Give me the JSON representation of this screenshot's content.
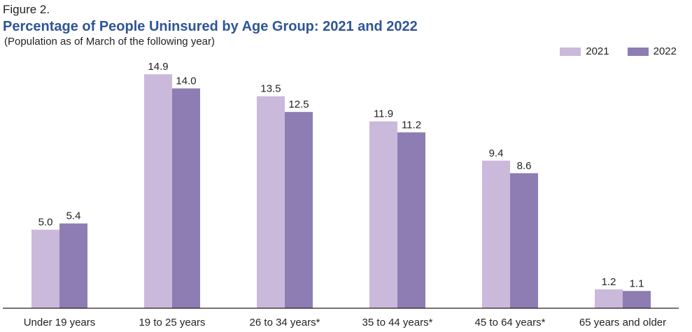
{
  "figure_label": "Figure 2.",
  "title": "Percentage of People Uninsured by Age Group: 2021 and 2022",
  "subtitle": "(Population as of March of the following year)",
  "colors": {
    "series_2021": "#cbb9dc",
    "series_2022": "#8e7db3",
    "title": "#2f5597",
    "axis": "#231f20"
  },
  "legend": [
    {
      "label": "2021",
      "color": "#cbb9dc"
    },
    {
      "label": "2022",
      "color": "#8e7db3"
    }
  ],
  "chart_data": {
    "type": "bar",
    "categories": [
      "Under 19 years",
      "19 to 25 years",
      "26 to 34 years*",
      "35 to 44 years*",
      "45 to 64 years*",
      "65 years and older"
    ],
    "series": [
      {
        "name": "2021",
        "values": [
          5.0,
          14.9,
          13.5,
          11.9,
          9.4,
          1.2
        ]
      },
      {
        "name": "2022",
        "values": [
          5.4,
          14.0,
          12.5,
          11.2,
          8.6,
          1.1
        ]
      }
    ],
    "title": "Percentage of People Uninsured by Age Group: 2021 and 2022",
    "subtitle": "(Population as of March of the following year)",
    "xlabel": "",
    "ylabel": "",
    "ylim": [
      0,
      15
    ],
    "grid": false,
    "legend_position": "top-right",
    "data_labels": true
  }
}
